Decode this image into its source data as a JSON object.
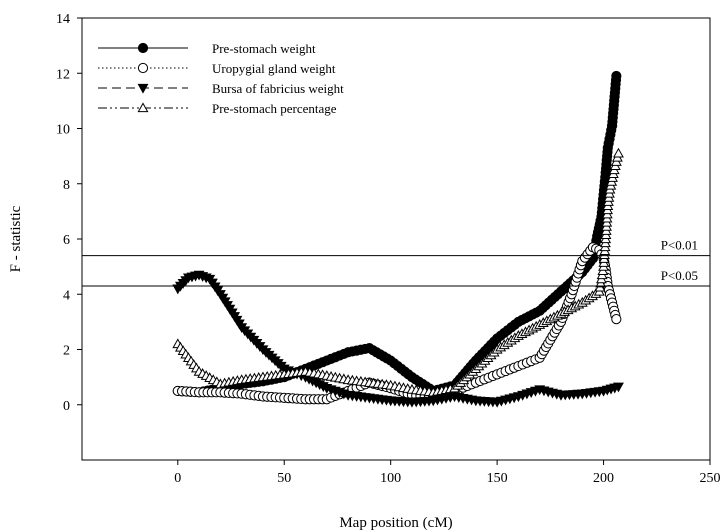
{
  "chart_data": {
    "type": "line",
    "title": "",
    "xlabel": "Map position (cM)",
    "ylabel": "F - statistic",
    "xlim": [
      -45,
      250
    ],
    "ylim": [
      -2,
      14
    ],
    "xticks": [
      0,
      50,
      100,
      150,
      200,
      250
    ],
    "yticks": [
      0,
      2,
      4,
      6,
      8,
      10,
      12,
      14
    ],
    "grid": false,
    "legend_position": "top-left",
    "thresholds": [
      {
        "label": "P<0.01",
        "value": 5.4
      },
      {
        "label": "P<0.05",
        "value": 4.3
      }
    ],
    "series": [
      {
        "name": "Pre-stomach weight",
        "marker": "filled-circle",
        "line": "solid",
        "points": [
          [
            0,
            0.5
          ],
          [
            10,
            0.45
          ],
          [
            20,
            0.6
          ],
          [
            30,
            0.75
          ],
          [
            40,
            0.85
          ],
          [
            50,
            1.0
          ],
          [
            60,
            1.3
          ],
          [
            70,
            1.6
          ],
          [
            80,
            1.9
          ],
          [
            90,
            2.05
          ],
          [
            100,
            1.6
          ],
          [
            110,
            1.0
          ],
          [
            120,
            0.5
          ],
          [
            130,
            0.7
          ],
          [
            140,
            1.6
          ],
          [
            150,
            2.4
          ],
          [
            160,
            3.0
          ],
          [
            170,
            3.4
          ],
          [
            180,
            4.1
          ],
          [
            190,
            4.8
          ],
          [
            195,
            5.3
          ],
          [
            197,
            6.1
          ],
          [
            199,
            6.8
          ],
          [
            200,
            7.6
          ],
          [
            201,
            8.4
          ],
          [
            202,
            9.3
          ],
          [
            204,
            10.1
          ],
          [
            205,
            11.0
          ],
          [
            206,
            11.9
          ]
        ]
      },
      {
        "name": "Uropygial gland weight",
        "marker": "open-circle",
        "line": "dotted",
        "points": [
          [
            0,
            0.5
          ],
          [
            10,
            0.45
          ],
          [
            20,
            0.45
          ],
          [
            30,
            0.4
          ],
          [
            40,
            0.3
          ],
          [
            50,
            0.25
          ],
          [
            60,
            0.2
          ],
          [
            70,
            0.2
          ],
          [
            80,
            0.5
          ],
          [
            90,
            0.8
          ],
          [
            100,
            0.6
          ],
          [
            110,
            0.35
          ],
          [
            120,
            0.25
          ],
          [
            130,
            0.5
          ],
          [
            140,
            0.8
          ],
          [
            150,
            1.1
          ],
          [
            160,
            1.4
          ],
          [
            170,
            1.7
          ],
          [
            180,
            3.0
          ],
          [
            185,
            4.0
          ],
          [
            190,
            5.2
          ],
          [
            195,
            5.7
          ],
          [
            198,
            5.6
          ],
          [
            200,
            5.3
          ],
          [
            201,
            4.9
          ],
          [
            202,
            4.3
          ],
          [
            204,
            3.7
          ],
          [
            206,
            3.1
          ]
        ]
      },
      {
        "name": "Bursa of fabricius weight",
        "marker": "filled-triangle-down",
        "line": "dashed",
        "points": [
          [
            0,
            4.2
          ],
          [
            5,
            4.6
          ],
          [
            10,
            4.7
          ],
          [
            15,
            4.55
          ],
          [
            20,
            4.0
          ],
          [
            30,
            2.8
          ],
          [
            40,
            2.0
          ],
          [
            50,
            1.3
          ],
          [
            60,
            1.0
          ],
          [
            70,
            0.6
          ],
          [
            80,
            0.35
          ],
          [
            90,
            0.25
          ],
          [
            100,
            0.15
          ],
          [
            110,
            0.1
          ],
          [
            120,
            0.15
          ],
          [
            130,
            0.3
          ],
          [
            140,
            0.15
          ],
          [
            150,
            0.1
          ],
          [
            160,
            0.3
          ],
          [
            170,
            0.55
          ],
          [
            180,
            0.35
          ],
          [
            190,
            0.4
          ],
          [
            200,
            0.5
          ],
          [
            207,
            0.65
          ]
        ]
      },
      {
        "name": "Pre-stomach percentage",
        "marker": "open-triangle-up",
        "line": "dash-dot-dot",
        "points": [
          [
            0,
            2.2
          ],
          [
            10,
            1.2
          ],
          [
            20,
            0.75
          ],
          [
            30,
            0.9
          ],
          [
            40,
            1.0
          ],
          [
            50,
            1.1
          ],
          [
            60,
            1.2
          ],
          [
            70,
            1.05
          ],
          [
            80,
            0.9
          ],
          [
            90,
            0.8
          ],
          [
            100,
            0.7
          ],
          [
            110,
            0.55
          ],
          [
            120,
            0.45
          ],
          [
            130,
            0.6
          ],
          [
            140,
            1.3
          ],
          [
            150,
            2.0
          ],
          [
            160,
            2.5
          ],
          [
            170,
            2.9
          ],
          [
            180,
            3.3
          ],
          [
            190,
            3.7
          ],
          [
            198,
            4.1
          ],
          [
            200,
            5.0
          ],
          [
            201,
            6.0
          ],
          [
            202,
            7.2
          ],
          [
            203,
            7.8
          ],
          [
            205,
            8.5
          ],
          [
            207,
            9.1
          ]
        ]
      }
    ]
  }
}
